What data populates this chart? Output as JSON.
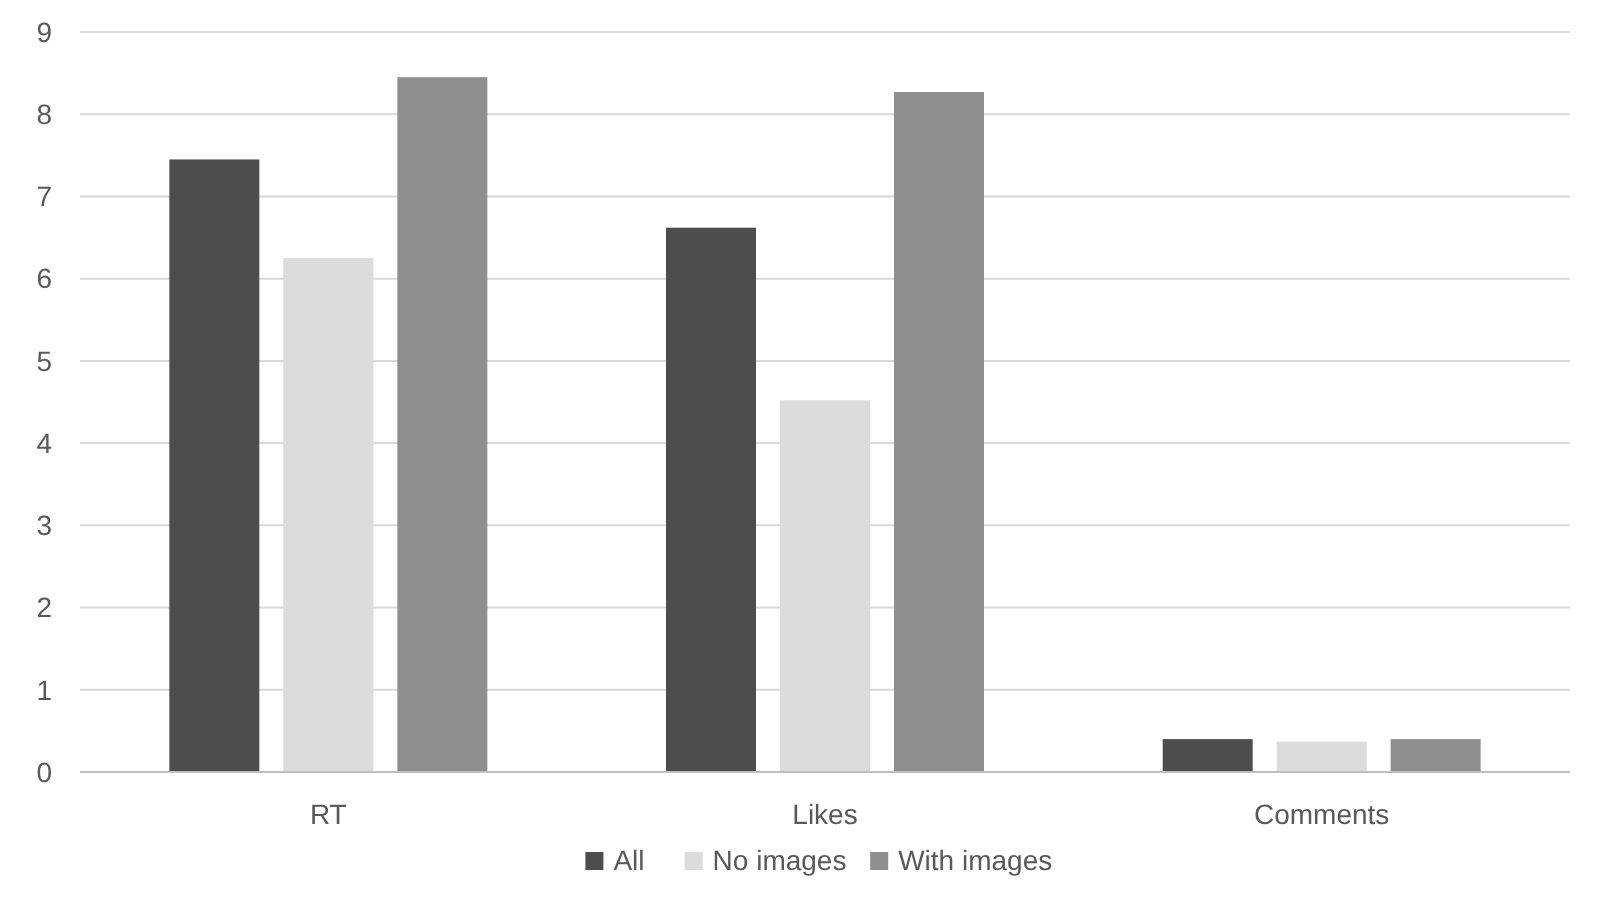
{
  "chart_data": {
    "type": "bar",
    "categories": [
      "RT",
      "Likes",
      "Comments"
    ],
    "series": [
      {
        "name": "All",
        "color": "#4d4d4d",
        "values": [
          7.45,
          6.62,
          0.4
        ]
      },
      {
        "name": "No images",
        "color": "#dcdcdc",
        "values": [
          6.25,
          4.52,
          0.37
        ]
      },
      {
        "name": "With images",
        "color": "#8f8f8f",
        "values": [
          8.45,
          8.27,
          0.4
        ]
      }
    ],
    "ylim": [
      0,
      9
    ],
    "yticks": [
      0,
      1,
      2,
      3,
      4,
      5,
      6,
      7,
      8,
      9
    ],
    "grid": "y",
    "legend": "bottom"
  }
}
